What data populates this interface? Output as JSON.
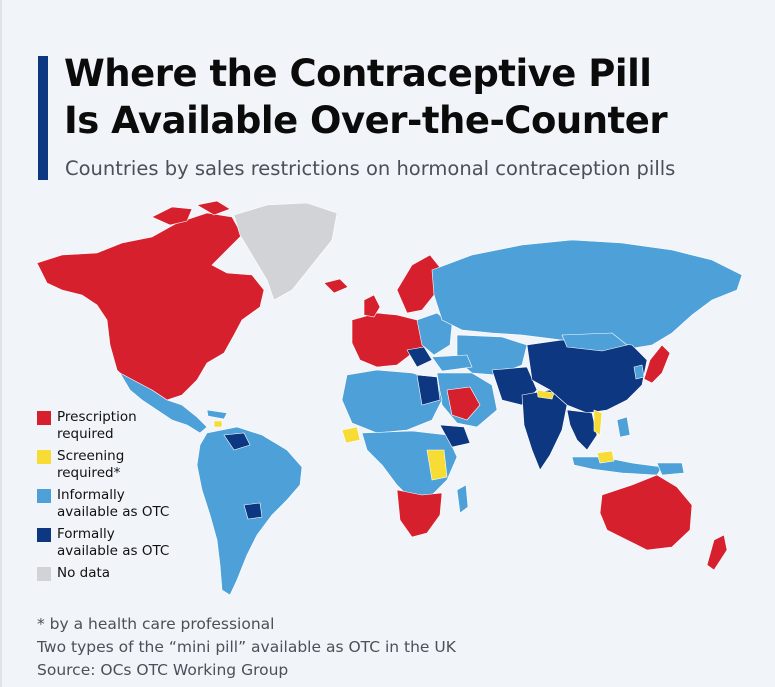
{
  "title": {
    "line1": "Where the Contraceptive Pill",
    "line2": "Is Available Over-the-Counter"
  },
  "subtitle": "Countries by sales restrictions on hormonal contraception pills",
  "colors": {
    "prescription": "#d7202e",
    "screening": "#f6dc34",
    "informal": "#4ea1d8",
    "formal": "#0d3781",
    "no_data": "#d1d3d6"
  },
  "legend": [
    {
      "key": "prescription",
      "label": "Prescription required"
    },
    {
      "key": "screening",
      "label": "Screening required*"
    },
    {
      "key": "informal",
      "label": "Informally available as OTC"
    },
    {
      "key": "formal",
      "label": "Formally available as OTC"
    },
    {
      "key": "no_data",
      "label": "No data"
    }
  ],
  "footer": {
    "note1": "* by a health care professional",
    "note2": "Two types of the “mini pill” available as OTC in the UK",
    "source": "Source: OCs OTC Working Group"
  }
}
